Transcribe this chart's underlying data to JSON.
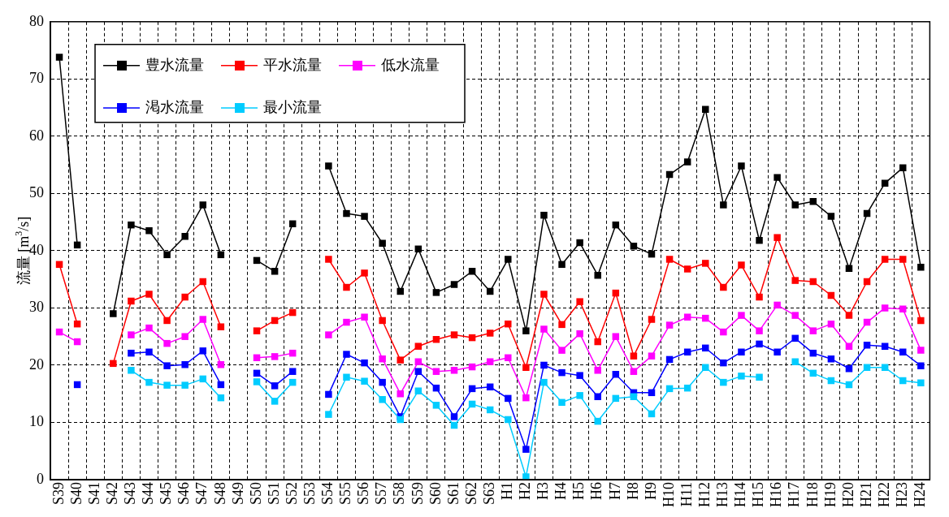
{
  "chart_data": {
    "type": "line",
    "ylabel": "流量 [m$^{3}$/s]",
    "categories": [
      "S39",
      "S40",
      "S41",
      "S42",
      "S43",
      "S44",
      "S45",
      "S46",
      "S47",
      "S48",
      "S49",
      "S50",
      "S51",
      "S52",
      "S53",
      "S54",
      "S55",
      "S56",
      "S57",
      "S58",
      "S59",
      "S60",
      "S61",
      "S62",
      "S63",
      "H1",
      "H2",
      "H3",
      "H4",
      "H5",
      "H6",
      "H7",
      "H8",
      "H9",
      "H10",
      "H11",
      "H12",
      "H13",
      "H14",
      "H15",
      "H16",
      "H17",
      "H18",
      "H19",
      "H20",
      "H21",
      "H22",
      "H23",
      "H24"
    ],
    "series": [
      {
        "name": "豊水流量",
        "color": "#000000",
        "values": [
          73.8,
          41,
          null,
          29,
          44.5,
          43.5,
          39.3,
          42.5,
          48,
          39.3,
          null,
          38.3,
          36.4,
          44.7,
          null,
          54.8,
          46.5,
          46,
          41.3,
          32.9,
          40.3,
          32.7,
          34.1,
          36.4,
          32.9,
          38.5,
          26,
          46.2,
          37.6,
          41.4,
          35.7,
          44.5,
          40.8,
          39.4,
          53.3,
          55.5,
          64.7,
          48,
          54.8,
          41.8,
          52.8,
          48,
          48.6,
          46,
          36.9,
          46.5,
          51.8,
          54.5,
          37.1
        ]
      },
      {
        "name": "平水流量",
        "color": "#ff0000",
        "values": [
          37.6,
          27.2,
          null,
          20.3,
          31.2,
          32.4,
          27.8,
          31.9,
          34.6,
          26.7,
          null,
          26,
          27.8,
          29.2,
          null,
          38.5,
          33.6,
          36.1,
          27.8,
          20.9,
          23.3,
          24.5,
          25.3,
          24.8,
          25.6,
          27.2,
          19.6,
          32.4,
          27.1,
          31.1,
          24.1,
          32.6,
          21.6,
          28,
          38.5,
          36.8,
          37.8,
          33.6,
          37.5,
          31.9,
          42.3,
          34.8,
          34.6,
          32.2,
          28.7,
          34.6,
          38.5,
          38.5,
          27.8
        ]
      },
      {
        "name": "低水流量",
        "color": "#ff00ff",
        "values": [
          25.8,
          24.1,
          null,
          null,
          25.3,
          26.5,
          23.8,
          25,
          28,
          20.1,
          null,
          21.3,
          21.5,
          22.1,
          null,
          25.3,
          27.5,
          28.4,
          21.1,
          15,
          20.6,
          18.9,
          19.1,
          19.7,
          20.6,
          21.3,
          14.3,
          26.3,
          22.6,
          25.5,
          19.1,
          25,
          18.9,
          21.6,
          27,
          28.4,
          28.2,
          25.8,
          28.7,
          26,
          30.5,
          28.7,
          26,
          27.2,
          23.3,
          27.5,
          30,
          29.8,
          22.6
        ]
      },
      {
        "name": "渇水流量",
        "color": "#0000ff",
        "values": [
          null,
          16.6,
          null,
          null,
          22.1,
          22.3,
          19.9,
          20.1,
          22.5,
          16.6,
          null,
          18.6,
          16.4,
          18.9,
          null,
          14.9,
          21.9,
          20.4,
          17,
          11,
          18.9,
          16,
          11,
          15.9,
          16.2,
          14.2,
          5.3,
          20,
          18.7,
          18.2,
          14.5,
          18.4,
          15.2,
          15.2,
          21,
          22.3,
          23,
          20.4,
          22.3,
          23.7,
          22.3,
          24.7,
          22.1,
          21.1,
          19.4,
          23.5,
          23.3,
          22.3,
          19.9
        ]
      },
      {
        "name": "最小流量",
        "color": "#00ccff",
        "values": [
          null,
          null,
          null,
          null,
          19.1,
          17,
          16.5,
          16.5,
          17.6,
          14.3,
          null,
          17.1,
          13.7,
          17,
          null,
          11.4,
          17.9,
          17.2,
          14,
          10.5,
          15.5,
          13,
          9.5,
          13.2,
          12.2,
          10.5,
          0.5,
          17,
          13.5,
          14.7,
          10.2,
          14.2,
          14.5,
          11.5,
          15.9,
          16,
          19.6,
          17,
          18.1,
          17.9,
          null,
          20.6,
          18.6,
          17.3,
          16.6,
          19.6,
          19.6,
          17.3,
          16.9
        ]
      }
    ],
    "ylim": [
      0,
      80
    ],
    "yticks": [
      0,
      10,
      20,
      30,
      40,
      50,
      60,
      70,
      80
    ],
    "grid": true,
    "legend": "top left",
    "marker": "square",
    "line_style": "solid"
  }
}
